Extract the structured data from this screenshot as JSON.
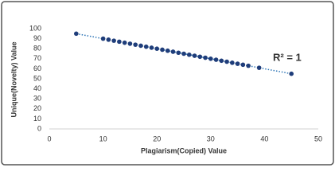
{
  "chart_data": {
    "type": "scatter",
    "x_label": "Plagiarism(Copied) Value",
    "y_label": "Unique(Novelty) Value",
    "annotation": "R² = 1",
    "x": [
      5,
      10,
      11,
      12,
      13,
      14,
      15,
      16,
      17,
      18,
      19,
      20,
      21,
      22,
      23,
      24,
      25,
      26,
      27,
      28,
      29,
      30,
      31,
      32,
      33,
      34,
      35,
      36,
      37,
      39,
      45
    ],
    "series": [
      {
        "color": "#1f3d7a",
        "values": [
          95,
          90,
          89,
          88,
          87,
          86,
          85,
          84,
          83,
          82,
          81,
          80,
          79,
          78,
          77,
          76,
          75,
          74,
          73,
          72,
          71,
          70,
          69,
          68,
          67,
          66,
          65,
          64,
          63,
          61,
          55
        ]
      }
    ],
    "trendline": true,
    "trendline_color": "#2e75b6",
    "xlim": [
      0,
      50
    ],
    "xticks": [
      0,
      10,
      20,
      30,
      40,
      50
    ],
    "ylim": [
      0,
      100
    ],
    "yticks": [
      0,
      10,
      20,
      30,
      40,
      50,
      60,
      70,
      80,
      90,
      100
    ],
    "grid": false
  }
}
